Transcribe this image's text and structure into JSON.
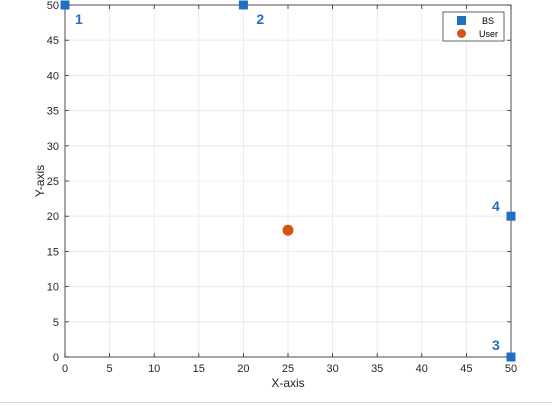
{
  "chart_data": {
    "type": "scatter",
    "xlabel": "X-axis",
    "ylabel": "Y-axis",
    "xlim": [
      0,
      50
    ],
    "ylim": [
      0,
      50
    ],
    "xticks": [
      0,
      5,
      10,
      15,
      20,
      25,
      30,
      35,
      40,
      45,
      50
    ],
    "yticks": [
      0,
      5,
      10,
      15,
      20,
      25,
      30,
      35,
      40,
      45,
      50
    ],
    "grid": true,
    "legend_position": "top-right",
    "series": [
      {
        "name": "BS",
        "marker": "square",
        "color": "#1f6fc2",
        "points": [
          {
            "x": 0,
            "y": 50,
            "label": "1"
          },
          {
            "x": 20,
            "y": 50,
            "label": "2"
          },
          {
            "x": 50,
            "y": 0,
            "label": "3"
          },
          {
            "x": 50,
            "y": 20,
            "label": "4"
          }
        ]
      },
      {
        "name": "User",
        "marker": "circle",
        "color": "#d95319",
        "points": [
          {
            "x": 25,
            "y": 18
          }
        ]
      }
    ],
    "point_label_color": "#1f6fc2"
  }
}
